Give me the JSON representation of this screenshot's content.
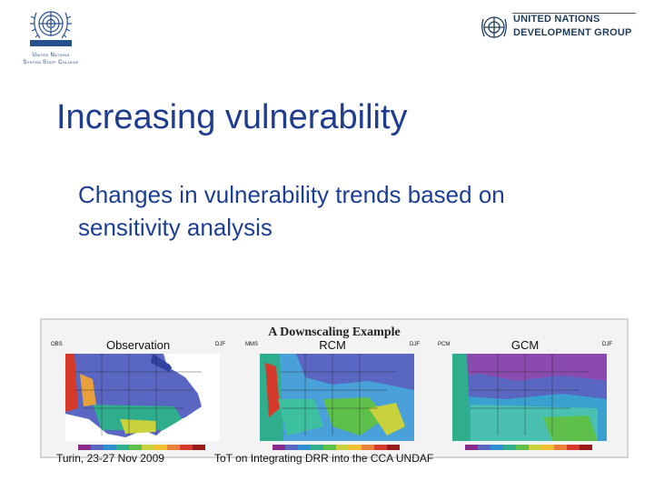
{
  "header": {
    "left_logo": {
      "line1": "United Nations",
      "line2": "System Staff College"
    },
    "right_logo": {
      "line1": "UNITED NATIONS",
      "line2": "DEVELOPMENT GROUP"
    }
  },
  "slide": {
    "title": "Increasing vulnerability",
    "body": "Changes in vulnerability trends based on sensitivity analysis"
  },
  "figure": {
    "title": "A Downscaling Example",
    "panels": [
      {
        "tag_left": "OBS",
        "title": "Observation",
        "tag_right": "DJF"
      },
      {
        "tag_left": "MMS",
        "title": "RCM",
        "tag_right": "DJF"
      },
      {
        "tag_left": "PCM",
        "title": "GCM",
        "tag_right": "DJF"
      }
    ]
  },
  "footer": {
    "location_date": "Turin, 23-27 Nov 2009",
    "event": "ToT on Integrating DRR into the CCA UNDAF"
  },
  "colors": {
    "title": "#1f3c8f",
    "body": "#1c3f94",
    "figure_bg": "#f3f3f3"
  }
}
